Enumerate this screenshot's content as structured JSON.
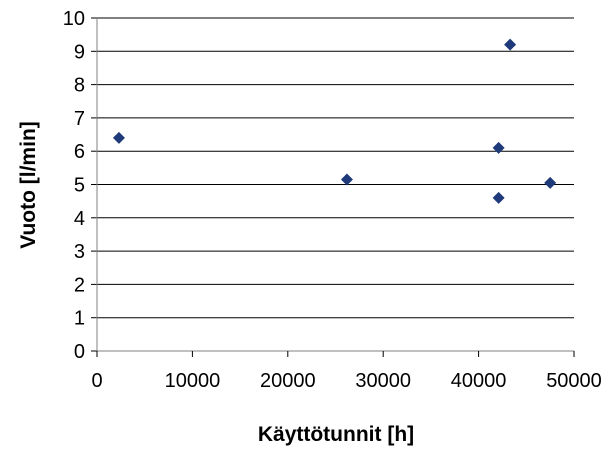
{
  "chart_data": {
    "type": "scatter",
    "title": "",
    "xlabel": "Käyttötunnit [h]",
    "ylabel": "Vuoto [l/min]",
    "xlim": [
      0,
      50000
    ],
    "ylim": [
      0,
      10
    ],
    "x_ticks": [
      0,
      10000,
      20000,
      30000,
      40000,
      50000
    ],
    "y_ticks": [
      0,
      1,
      2,
      3,
      4,
      5,
      6,
      7,
      8,
      9,
      10
    ],
    "grid": "horizontal",
    "legend": "none",
    "marker": "diamond",
    "series": [
      {
        "color": "#1f3a7a",
        "points": [
          {
            "x": 2300,
            "y": 6.4
          },
          {
            "x": 26200,
            "y": 5.15
          },
          {
            "x": 42100,
            "y": 6.1
          },
          {
            "x": 43300,
            "y": 9.2
          },
          {
            "x": 42100,
            "y": 4.6
          },
          {
            "x": 47500,
            "y": 5.05
          }
        ]
      }
    ]
  }
}
